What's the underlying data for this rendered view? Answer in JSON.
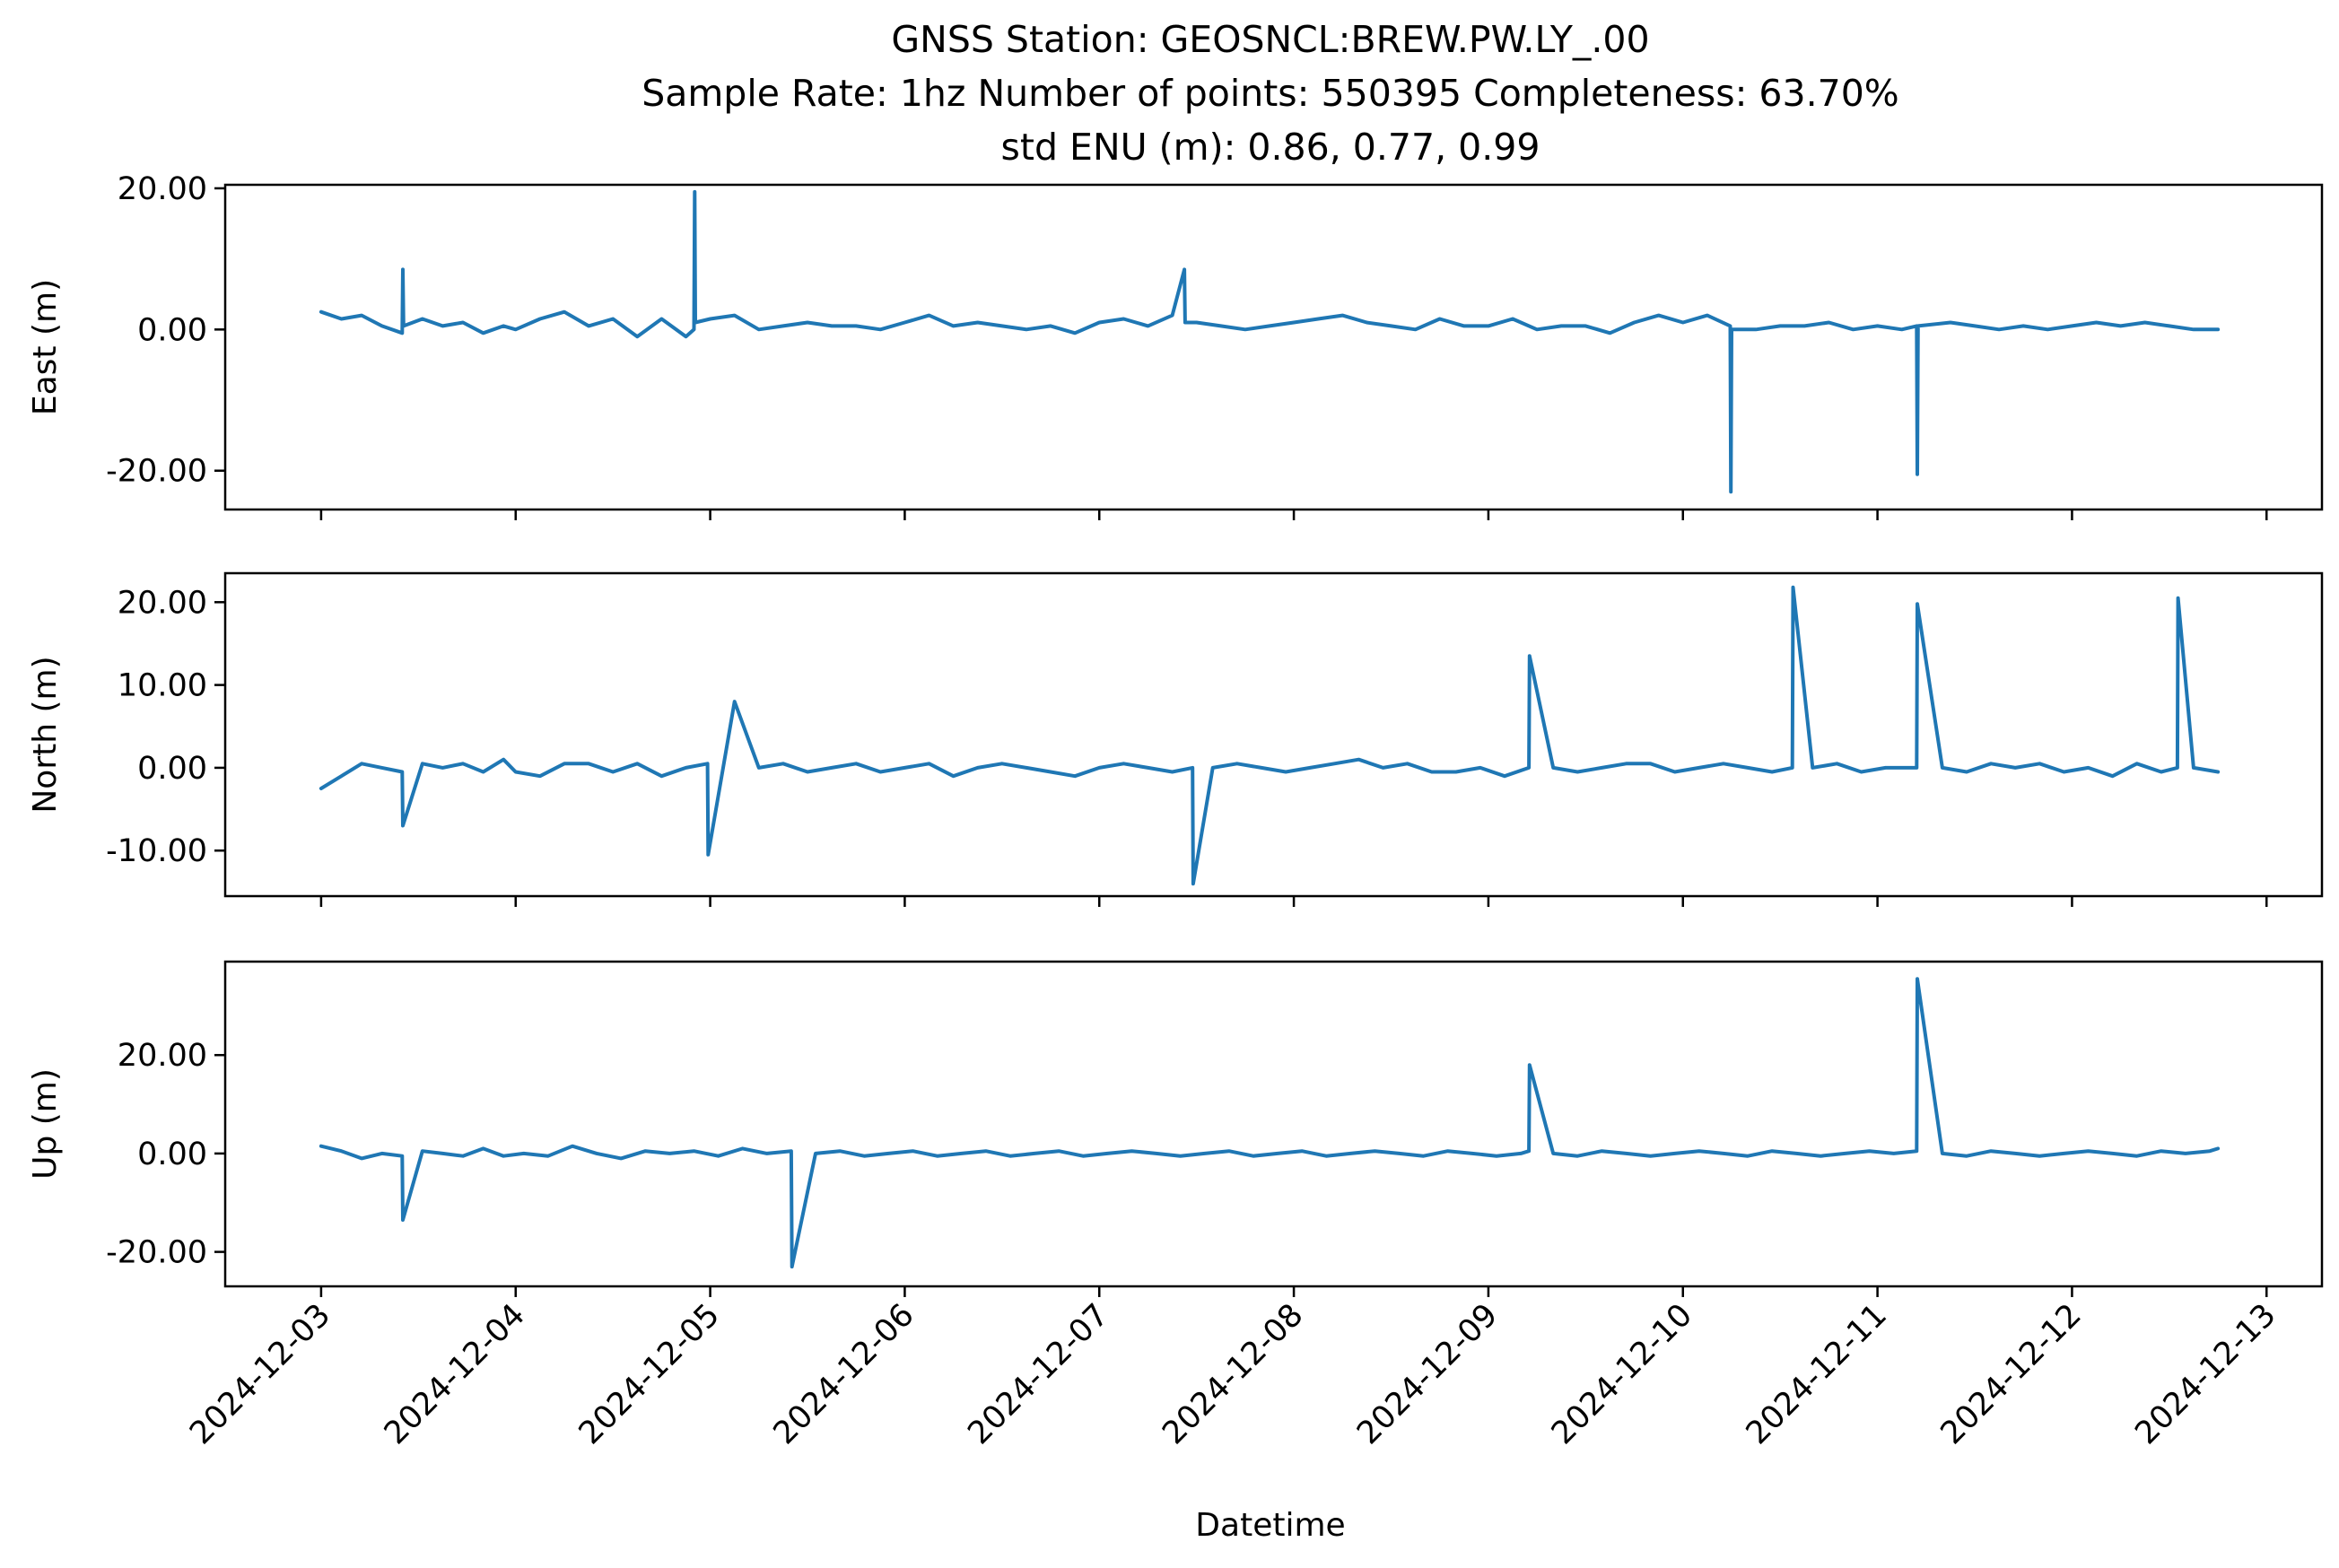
{
  "figure": {
    "title_line1": "GNSS Station: GEOSNCL:BREW.PW.LY_.00",
    "title_line2": "Sample Rate: 1hz   Number of points: 550395    Completeness:  63.70%",
    "title_line3": "std ENU (m):  0.86, 0.77, 0.99",
    "xlabel": "Datetime",
    "line_color": "#1f77b4"
  },
  "chart_data": [
    {
      "type": "line",
      "ylabel": "East (m)",
      "xlim": [
        "2024-12-02T12:10",
        "2024-12-13T06:50"
      ],
      "ylim": [
        -25.5,
        20.5
      ],
      "yticks": [
        20,
        0,
        -20
      ],
      "ytick_labels": [
        "20.00",
        "0.00",
        "-20.00"
      ],
      "xticks": [
        "2024-12-03",
        "2024-12-04",
        "2024-12-05",
        "2024-12-06",
        "2024-12-07",
        "2024-12-08",
        "2024-12-09",
        "2024-12-10",
        "2024-12-11",
        "2024-12-12",
        "2024-12-13"
      ],
      "xtick_labels": [],
      "grid": false,
      "series": [
        {
          "x": [
            "2024-12-03T00:00",
            "2024-12-03T02:30",
            "2024-12-03T05:00",
            "2024-12-03T07:30",
            "2024-12-03T10:00",
            "2024-12-03T10:05",
            "2024-12-03T10:10",
            "2024-12-03T12:30",
            "2024-12-03T15:00",
            "2024-12-03T17:30",
            "2024-12-03T20:00",
            "2024-12-03T22:30",
            "2024-12-04T00:00",
            "2024-12-04T03:00",
            "2024-12-04T06:00",
            "2024-12-04T09:00",
            "2024-12-04T12:00",
            "2024-12-04T15:00",
            "2024-12-04T18:00",
            "2024-12-04T21:00",
            "2024-12-04T22:00",
            "2024-12-04T22:05",
            "2024-12-04T22:10",
            "2024-12-05T00:00",
            "2024-12-05T03:00",
            "2024-12-05T06:00",
            "2024-12-05T09:00",
            "2024-12-05T12:00",
            "2024-12-05T15:00",
            "2024-12-05T18:00",
            "2024-12-05T21:00",
            "2024-12-06T00:00",
            "2024-12-06T03:00",
            "2024-12-06T06:00",
            "2024-12-06T09:00",
            "2024-12-06T12:00",
            "2024-12-06T15:00",
            "2024-12-06T18:00",
            "2024-12-06T21:00",
            "2024-12-07T00:00",
            "2024-12-07T03:00",
            "2024-12-07T06:00",
            "2024-12-07T09:00",
            "2024-12-07T10:30",
            "2024-12-07T10:35",
            "2024-12-07T12:00",
            "2024-12-07T15:00",
            "2024-12-07T18:00",
            "2024-12-07T21:00",
            "2024-12-08T00:00",
            "2024-12-08T03:00",
            "2024-12-08T06:00",
            "2024-12-08T09:00",
            "2024-12-08T12:00",
            "2024-12-08T15:00",
            "2024-12-08T18:00",
            "2024-12-08T21:00",
            "2024-12-09T00:00",
            "2024-12-09T03:00",
            "2024-12-09T06:00",
            "2024-12-09T09:00",
            "2024-12-09T12:00",
            "2024-12-09T15:00",
            "2024-12-09T18:00",
            "2024-12-09T21:00",
            "2024-12-10T00:00",
            "2024-12-10T03:00",
            "2024-12-10T05:50",
            "2024-12-10T05:55",
            "2024-12-10T06:00",
            "2024-12-10T09:00",
            "2024-12-10T12:00",
            "2024-12-10T15:00",
            "2024-12-10T18:00",
            "2024-12-10T21:00",
            "2024-12-11T00:00",
            "2024-12-11T03:00",
            "2024-12-11T04:50",
            "2024-12-11T04:55",
            "2024-12-11T05:00",
            "2024-12-11T09:00",
            "2024-12-11T12:00",
            "2024-12-11T15:00",
            "2024-12-11T18:00",
            "2024-12-11T21:00",
            "2024-12-12T00:00",
            "2024-12-12T03:00",
            "2024-12-12T06:00",
            "2024-12-12T09:00",
            "2024-12-12T12:00",
            "2024-12-12T15:00",
            "2024-12-12T18:00"
          ],
          "y": [
            2.5,
            1.5,
            2.0,
            0.5,
            -0.5,
            8.5,
            0.5,
            1.5,
            0.5,
            1.0,
            -0.5,
            0.5,
            0.0,
            1.5,
            2.5,
            0.5,
            1.5,
            -1.0,
            1.5,
            -1.0,
            0.0,
            19.5,
            1.0,
            1.5,
            2.0,
            0.0,
            0.5,
            1.0,
            0.5,
            0.5,
            0.0,
            1.0,
            2.0,
            0.5,
            1.0,
            0.5,
            0.0,
            0.5,
            -0.5,
            1.0,
            1.5,
            0.5,
            2.0,
            8.5,
            1.0,
            1.0,
            0.5,
            0.0,
            0.5,
            1.0,
            1.5,
            2.0,
            1.0,
            0.5,
            0.0,
            1.5,
            0.5,
            0.5,
            1.5,
            0.0,
            0.5,
            0.5,
            -0.5,
            1.0,
            2.0,
            1.0,
            2.0,
            0.5,
            -23.0,
            0.0,
            0.0,
            0.5,
            0.5,
            1.0,
            0.0,
            0.5,
            0.0,
            0.5,
            -20.5,
            0.5,
            1.0,
            0.5,
            0.0,
            0.5,
            0.0,
            0.5,
            1.0,
            0.5,
            1.0,
            0.5,
            0.0,
            0.0
          ]
        }
      ]
    },
    {
      "type": "line",
      "ylabel": "North (m)",
      "xlim": [
        "2024-12-02T12:10",
        "2024-12-13T06:50"
      ],
      "ylim": [
        -15.5,
        23.5
      ],
      "yticks": [
        20,
        10,
        0,
        -10
      ],
      "ytick_labels": [
        "20.00",
        "10.00",
        "0.00",
        "-10.00"
      ],
      "xticks": [
        "2024-12-03",
        "2024-12-04",
        "2024-12-05",
        "2024-12-06",
        "2024-12-07",
        "2024-12-08",
        "2024-12-09",
        "2024-12-10",
        "2024-12-11",
        "2024-12-12",
        "2024-12-13"
      ],
      "xtick_labels": [],
      "grid": false,
      "series": [
        {
          "x": [
            "2024-12-03T00:00",
            "2024-12-03T02:30",
            "2024-12-03T05:00",
            "2024-12-03T07:30",
            "2024-12-03T10:00",
            "2024-12-03T10:05",
            "2024-12-03T12:30",
            "2024-12-03T15:00",
            "2024-12-03T17:30",
            "2024-12-03T20:00",
            "2024-12-03T22:30",
            "2024-12-04T00:00",
            "2024-12-04T03:00",
            "2024-12-04T06:00",
            "2024-12-04T09:00",
            "2024-12-04T12:00",
            "2024-12-04T15:00",
            "2024-12-04T18:00",
            "2024-12-04T21:00",
            "2024-12-04T23:40",
            "2024-12-04T23:45",
            "2024-12-05T03:00",
            "2024-12-05T06:00",
            "2024-12-05T09:00",
            "2024-12-05T12:00",
            "2024-12-05T15:00",
            "2024-12-05T18:00",
            "2024-12-05T21:00",
            "2024-12-06T00:00",
            "2024-12-06T03:00",
            "2024-12-06T06:00",
            "2024-12-06T09:00",
            "2024-12-06T12:00",
            "2024-12-06T15:00",
            "2024-12-06T18:00",
            "2024-12-06T21:00",
            "2024-12-07T00:00",
            "2024-12-07T03:00",
            "2024-12-07T06:00",
            "2024-12-07T09:00",
            "2024-12-07T11:30",
            "2024-12-07T11:35",
            "2024-12-07T14:00",
            "2024-12-07T17:00",
            "2024-12-07T20:00",
            "2024-12-07T23:00",
            "2024-12-08T02:00",
            "2024-12-08T05:00",
            "2024-12-08T08:00",
            "2024-12-08T11:00",
            "2024-12-08T14:00",
            "2024-12-08T17:00",
            "2024-12-08T20:00",
            "2024-12-08T23:00",
            "2024-12-09T02:00",
            "2024-12-09T05:00",
            "2024-12-09T05:05",
            "2024-12-09T08:00",
            "2024-12-09T11:00",
            "2024-12-09T14:00",
            "2024-12-09T17:00",
            "2024-12-09T20:00",
            "2024-12-09T23:00",
            "2024-12-10T02:00",
            "2024-12-10T05:00",
            "2024-12-10T08:00",
            "2024-12-10T11:00",
            "2024-12-10T13:30",
            "2024-12-10T13:35",
            "2024-12-10T16:00",
            "2024-12-10T19:00",
            "2024-12-10T22:00",
            "2024-12-11T01:00",
            "2024-12-11T04:50",
            "2024-12-11T04:55",
            "2024-12-11T08:00",
            "2024-12-11T11:00",
            "2024-12-11T14:00",
            "2024-12-11T17:00",
            "2024-12-11T20:00",
            "2024-12-11T23:00",
            "2024-12-12T02:00",
            "2024-12-12T05:00",
            "2024-12-12T08:00",
            "2024-12-12T11:00",
            "2024-12-12T13:00",
            "2024-12-12T13:05",
            "2024-12-12T15:00",
            "2024-12-12T18:00"
          ],
          "y": [
            -2.5,
            -1.0,
            0.5,
            0.0,
            -0.5,
            -7.0,
            0.5,
            0.0,
            0.5,
            -0.5,
            1.0,
            -0.5,
            -1.0,
            0.5,
            0.5,
            -0.5,
            0.5,
            -1.0,
            0.0,
            0.5,
            -10.5,
            8.0,
            0.0,
            0.5,
            -0.5,
            0.0,
            0.5,
            -0.5,
            0.0,
            0.5,
            -1.0,
            0.0,
            0.5,
            0.0,
            -0.5,
            -1.0,
            0.0,
            0.5,
            0.0,
            -0.5,
            0.0,
            -14.0,
            0.0,
            0.5,
            0.0,
            -0.5,
            0.0,
            0.5,
            1.0,
            0.0,
            0.5,
            -0.5,
            -0.5,
            0.0,
            -1.0,
            0.0,
            13.5,
            0.0,
            -0.5,
            0.0,
            0.5,
            0.5,
            -0.5,
            0.0,
            0.5,
            0.0,
            -0.5,
            0.0,
            21.8,
            0.0,
            0.5,
            -0.5,
            0.0,
            0.0,
            19.8,
            0.0,
            -0.5,
            0.5,
            0.0,
            0.5,
            -0.5,
            0.0,
            -1.0,
            0.5,
            -0.5,
            0.0,
            20.5,
            0.0,
            -0.5
          ]
        }
      ]
    },
    {
      "type": "line",
      "ylabel": "Up (m)",
      "xlim": [
        "2024-12-02T12:10",
        "2024-12-13T06:50"
      ],
      "ylim": [
        -27,
        39
      ],
      "yticks": [
        20,
        0,
        -20
      ],
      "ytick_labels": [
        "20.00",
        "0.00",
        "-20.00"
      ],
      "xticks": [
        "2024-12-03",
        "2024-12-04",
        "2024-12-05",
        "2024-12-06",
        "2024-12-07",
        "2024-12-08",
        "2024-12-09",
        "2024-12-10",
        "2024-12-11",
        "2024-12-12",
        "2024-12-13"
      ],
      "xtick_labels": [
        "2024-12-03",
        "2024-12-04",
        "2024-12-05",
        "2024-12-06",
        "2024-12-07",
        "2024-12-08",
        "2024-12-09",
        "2024-12-10",
        "2024-12-11",
        "2024-12-12",
        "2024-12-13"
      ],
      "grid": false,
      "series": [
        {
          "x": [
            "2024-12-03T00:00",
            "2024-12-03T02:30",
            "2024-12-03T05:00",
            "2024-12-03T07:30",
            "2024-12-03T10:00",
            "2024-12-03T10:05",
            "2024-12-03T12:30",
            "2024-12-03T15:00",
            "2024-12-03T17:30",
            "2024-12-03T20:00",
            "2024-12-03T22:30",
            "2024-12-04T01:00",
            "2024-12-04T04:00",
            "2024-12-04T07:00",
            "2024-12-04T10:00",
            "2024-12-04T13:00",
            "2024-12-04T16:00",
            "2024-12-04T19:00",
            "2024-12-04T22:00",
            "2024-12-05T01:00",
            "2024-12-05T04:00",
            "2024-12-05T07:00",
            "2024-12-05T10:00",
            "2024-12-05T10:05",
            "2024-12-05T13:00",
            "2024-12-05T16:00",
            "2024-12-05T19:00",
            "2024-12-05T22:00",
            "2024-12-06T01:00",
            "2024-12-06T04:00",
            "2024-12-06T07:00",
            "2024-12-06T10:00",
            "2024-12-06T13:00",
            "2024-12-06T16:00",
            "2024-12-06T19:00",
            "2024-12-06T22:00",
            "2024-12-07T01:00",
            "2024-12-07T04:00",
            "2024-12-07T07:00",
            "2024-12-07T10:00",
            "2024-12-07T13:00",
            "2024-12-07T16:00",
            "2024-12-07T19:00",
            "2024-12-07T22:00",
            "2024-12-08T01:00",
            "2024-12-08T04:00",
            "2024-12-08T07:00",
            "2024-12-08T10:00",
            "2024-12-08T13:00",
            "2024-12-08T16:00",
            "2024-12-08T19:00",
            "2024-12-08T22:00",
            "2024-12-09T01:00",
            "2024-12-09T04:00",
            "2024-12-09T05:00",
            "2024-12-09T05:05",
            "2024-12-09T08:00",
            "2024-12-09T11:00",
            "2024-12-09T14:00",
            "2024-12-09T17:00",
            "2024-12-09T20:00",
            "2024-12-09T23:00",
            "2024-12-10T02:00",
            "2024-12-10T05:00",
            "2024-12-10T08:00",
            "2024-12-10T11:00",
            "2024-12-10T14:00",
            "2024-12-10T17:00",
            "2024-12-10T20:00",
            "2024-12-10T23:00",
            "2024-12-11T02:00",
            "2024-12-11T04:50",
            "2024-12-11T04:55",
            "2024-12-11T08:00",
            "2024-12-11T11:00",
            "2024-12-11T14:00",
            "2024-12-11T17:00",
            "2024-12-11T20:00",
            "2024-12-11T23:00",
            "2024-12-12T02:00",
            "2024-12-12T05:00",
            "2024-12-12T08:00",
            "2024-12-12T11:00",
            "2024-12-12T14:00",
            "2024-12-12T17:00",
            "2024-12-12T18:00"
          ],
          "y": [
            1.5,
            0.5,
            -1.0,
            0.0,
            -0.5,
            -13.5,
            0.5,
            0.0,
            -0.5,
            1.0,
            -0.5,
            0.0,
            -0.5,
            1.5,
            0.0,
            -1.0,
            0.5,
            0.0,
            0.5,
            -0.5,
            1.0,
            0.0,
            0.5,
            -23.0,
            0.0,
            0.5,
            -0.5,
            0.0,
            0.5,
            -0.5,
            0.0,
            0.5,
            -0.5,
            0.0,
            0.5,
            -0.5,
            0.0,
            0.5,
            0.0,
            -0.5,
            0.0,
            0.5,
            -0.5,
            0.0,
            0.5,
            -0.5,
            0.0,
            0.5,
            0.0,
            -0.5,
            0.5,
            0.0,
            -0.5,
            0.0,
            0.5,
            18.0,
            0.0,
            -0.5,
            0.5,
            0.0,
            -0.5,
            0.0,
            0.5,
            0.0,
            -0.5,
            0.5,
            0.0,
            -0.5,
            0.0,
            0.5,
            0.0,
            0.5,
            35.5,
            0.0,
            -0.5,
            0.5,
            0.0,
            -0.5,
            0.0,
            0.5,
            0.0,
            -0.5,
            0.5,
            0.0,
            0.5,
            1.0
          ]
        }
      ]
    }
  ]
}
